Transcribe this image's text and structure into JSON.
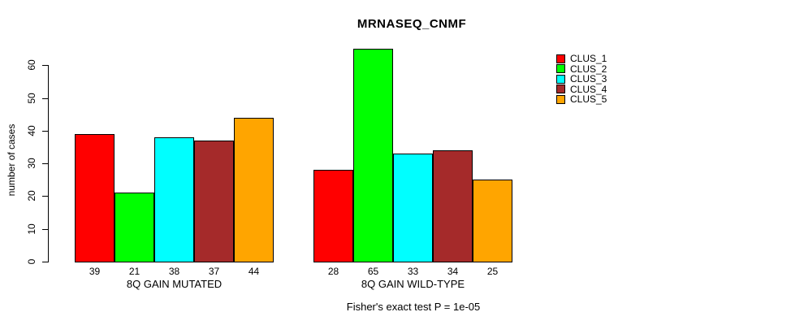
{
  "chart_data": {
    "type": "bar",
    "title": "MRNASEQ_CNMF",
    "ylabel": "number of cases",
    "xlabel": "",
    "yticks": [
      0,
      10,
      20,
      30,
      40,
      50,
      60
    ],
    "ylim": [
      0,
      65
    ],
    "grid": false,
    "legend_position": "right",
    "categories": [
      "8Q GAIN MUTATED",
      "8Q GAIN WILD-TYPE"
    ],
    "series": [
      {
        "name": "CLUS_1",
        "color": "#FF0000",
        "values": [
          39,
          28
        ]
      },
      {
        "name": "CLUS_2",
        "color": "#00FF00",
        "values": [
          21,
          65
        ]
      },
      {
        "name": "CLUS_3",
        "color": "#00FFFF",
        "values": [
          38,
          33
        ]
      },
      {
        "name": "CLUS_4",
        "color": "#A52A2A",
        "values": [
          37,
          34
        ]
      },
      {
        "name": "CLUS_5",
        "color": "#FFA500",
        "values": [
          44,
          25
        ]
      }
    ],
    "bar_value_labels": [
      [
        "39",
        "21",
        "38",
        "37",
        "44"
      ],
      [
        "28",
        "65",
        "33",
        "34",
        "25"
      ]
    ],
    "axis_color": "#000000",
    "annotation": "Fisher's exact test P = 1e-05"
  }
}
